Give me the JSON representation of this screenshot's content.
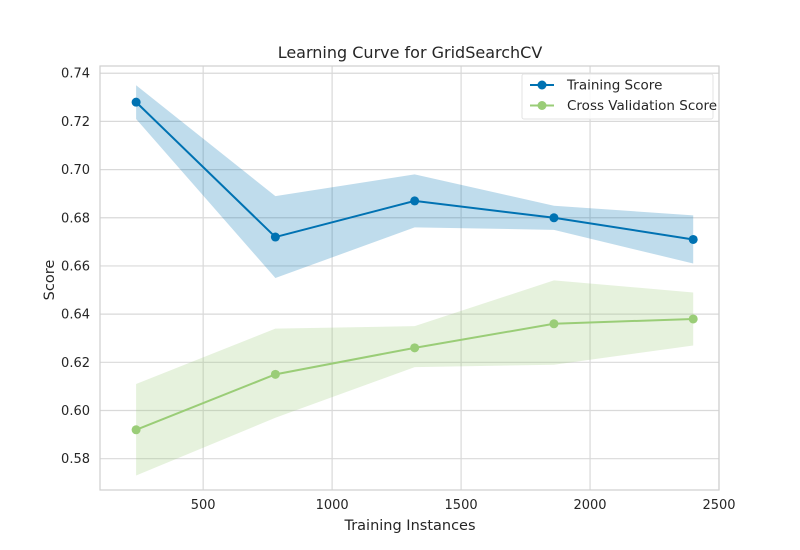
{
  "chart_data": {
    "type": "line",
    "title": "Learning Curve for GridSearchCV",
    "xlabel": "Training Instances",
    "ylabel": "Score",
    "xlim": [
      100,
      2500
    ],
    "ylim": [
      0.567,
      0.743
    ],
    "xticks": [
      500,
      1000,
      1500,
      2000,
      2500
    ],
    "yticks": [
      0.58,
      0.6,
      0.62,
      0.64,
      0.66,
      0.68,
      0.7,
      0.72,
      0.74
    ],
    "x": [
      240,
      780,
      1320,
      1860,
      2400
    ],
    "grid": true,
    "legend_position": "top-right",
    "series": [
      {
        "name": "Training Score",
        "color": "#0072B2",
        "band_color": "#0072B2",
        "values": [
          0.728,
          0.672,
          0.687,
          0.68,
          0.671
        ],
        "upper": [
          0.735,
          0.689,
          0.698,
          0.685,
          0.681
        ],
        "lower": [
          0.721,
          0.655,
          0.676,
          0.675,
          0.661
        ]
      },
      {
        "name": "Cross Validation Score",
        "color": "#9ACD77",
        "band_color": "#9ACD77",
        "values": [
          0.592,
          0.615,
          0.626,
          0.636,
          0.638
        ],
        "upper": [
          0.611,
          0.634,
          0.635,
          0.654,
          0.649
        ],
        "lower": [
          0.573,
          0.597,
          0.618,
          0.619,
          0.627
        ]
      }
    ]
  }
}
